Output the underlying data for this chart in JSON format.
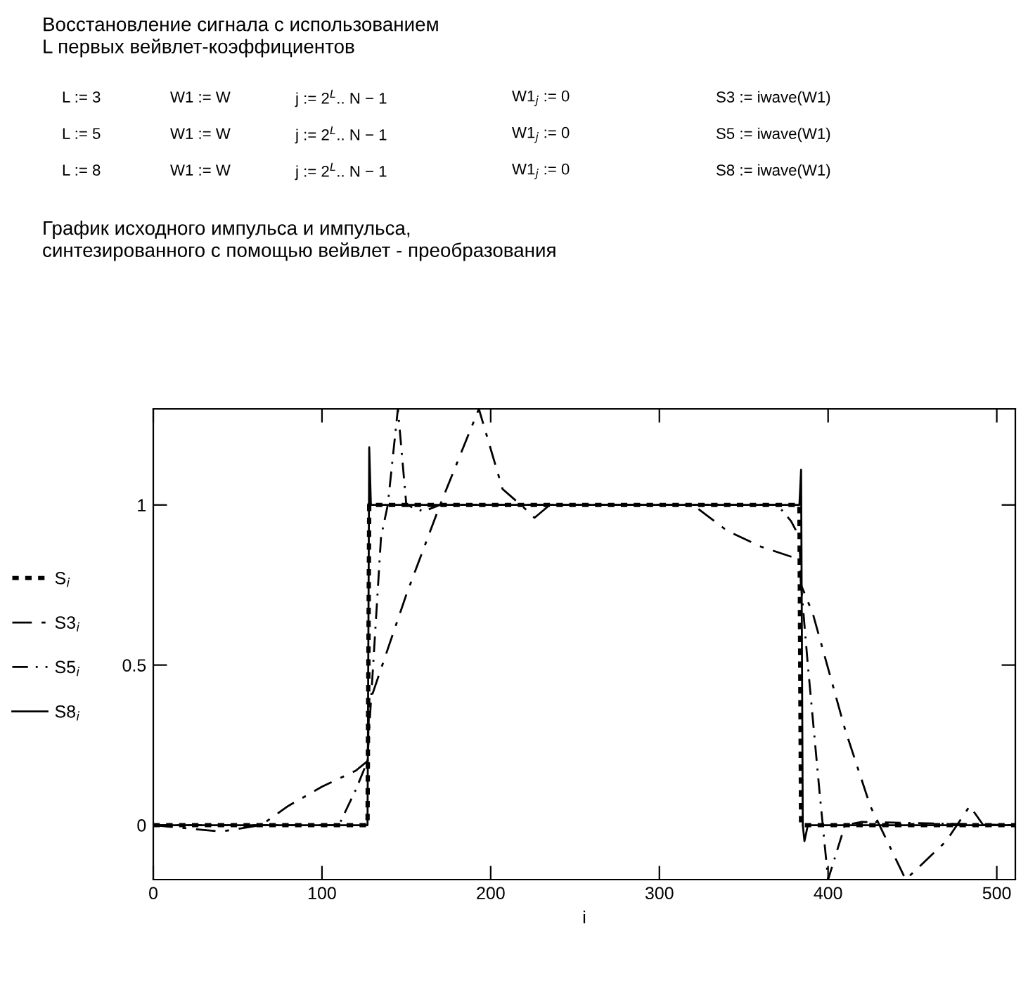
{
  "chart_data": {
    "type": "line",
    "title": "Восстановление сигнала с использованием\nL первых вейвлет-коэффициентов",
    "subtitle": "График исходного импульса и импульса,\nсинтезированного с помощью вейвлет - преобразования",
    "annotations": [
      "L := 3",
      "W1 := W",
      "j := 2$^{L}$.. N − 1",
      "W1$_{j}$ := 0",
      "S3 := iwave(W1)",
      "L := 5",
      "W1 := W",
      "j := 2$^{L}$.. N − 1",
      "W1$_{j}$ := 0",
      "S5 := iwave(W1)",
      "L := 8",
      "W1 := W",
      "j := 2$^{L}$.. N − 1",
      "W1$_{j}$ := 0",
      "S8 := iwave(W1)"
    ],
    "xlabel": "i",
    "xlim": [
      0,
      511
    ],
    "xticks": [
      0,
      100,
      200,
      300,
      400,
      500
    ],
    "ylim": [
      -0.17,
      1.3
    ],
    "yticks": [
      0,
      0.5,
      1
    ],
    "grid": false,
    "legend": "left",
    "series": [
      {
        "name": "S$_{i}$",
        "color": "#000000",
        "line_style": "dotted",
        "x": [
          0,
          127,
          128,
          383,
          384,
          511
        ],
        "values": [
          0,
          0,
          1,
          1,
          0,
          0
        ]
      },
      {
        "name": "S3$_{i}$",
        "color": "#000000",
        "line_style": "dashed",
        "x": [
          0,
          20,
          40,
          64,
          80,
          100,
          120,
          127,
          128,
          150,
          170,
          193,
          207,
          220,
          226,
          235,
          320,
          340,
          360,
          383,
          384,
          391,
          410,
          425,
          446,
          470,
          484,
          492,
          511
        ],
        "values": [
          0,
          -0.01,
          -0.02,
          0,
          0.06,
          0.12,
          0.17,
          0.2,
          0.38,
          0.72,
          1.0,
          1.3,
          1.05,
          0.99,
          0.96,
          1.0,
          1.0,
          0.92,
          0.87,
          0.83,
          0.75,
          0.66,
          0.3,
          0.06,
          -0.17,
          -0.05,
          0.06,
          0,
          0
        ]
      },
      {
        "name": "S5$_{i}$",
        "color": "#000000",
        "line_style": "dashdot",
        "x": [
          0,
          110,
          120,
          127,
          128,
          135,
          139,
          145,
          150,
          160,
          170,
          370,
          378,
          383,
          384,
          388,
          395,
          400,
          410,
          420,
          511
        ],
        "values": [
          0,
          0,
          0.11,
          0.2,
          0.3,
          0.9,
          1.0,
          1.3,
          1.0,
          0.98,
          1.0,
          1.0,
          0.95,
          0.9,
          0.75,
          0.5,
          0.1,
          -0.17,
          0,
          0.01,
          0
        ]
      },
      {
        "name": "S8$_{i}$",
        "color": "#000000",
        "line_style": "solid",
        "x": [
          0,
          127,
          128,
          129,
          383,
          384,
          385,
          386,
          388,
          511
        ],
        "values": [
          0,
          0,
          1.18,
          1.0,
          1.0,
          1.11,
          0.0,
          -0.05,
          0,
          0
        ]
      }
    ]
  }
}
